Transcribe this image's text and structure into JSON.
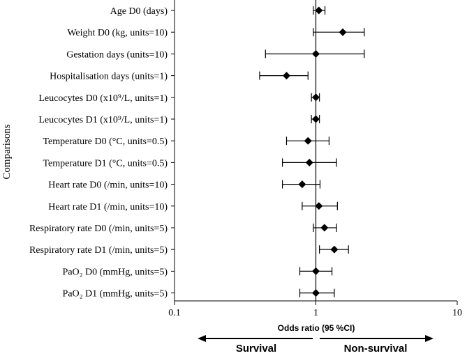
{
  "chart_data": {
    "type": "forest",
    "ylabel": "Comparisons",
    "xlabel": "Odds ratio (95 %CI)",
    "xscale": "log",
    "xlim": [
      0.1,
      10
    ],
    "xticks": [
      "0.1",
      "1",
      "10"
    ],
    "reference_line": 1,
    "rows": [
      {
        "label": "Age D0 (days)",
        "or": 1.05,
        "low": 0.96,
        "high": 1.16
      },
      {
        "label": "Weight D0 (kg, units=10)",
        "or": 1.55,
        "low": 0.96,
        "high": 2.2
      },
      {
        "label": "Gestation days (units=10)",
        "or": 1.0,
        "low": 0.44,
        "high": 2.2
      },
      {
        "label": "Hospitalisation days (units=1)",
        "or": 0.62,
        "low": 0.4,
        "high": 0.88
      },
      {
        "label": "Leucocytes D0 (x10⁹/L, units=1)",
        "or": 1.0,
        "low": 0.93,
        "high": 1.06
      },
      {
        "label": "Leucocytes D1 (x10⁹/L, units=1)",
        "or": 1.0,
        "low": 0.93,
        "high": 1.06
      },
      {
        "label": "Temperature D0 (°C, units=0.5)",
        "or": 0.88,
        "low": 0.62,
        "high": 1.24
      },
      {
        "label": "Temperature D1 (°C, units=0.5)",
        "or": 0.9,
        "low": 0.58,
        "high": 1.4
      },
      {
        "label": "Heart rate D0 (/min, units=10)",
        "or": 0.8,
        "low": 0.58,
        "high": 1.07
      },
      {
        "label": "Heart rate D1 (/min, units=10)",
        "or": 1.05,
        "low": 0.8,
        "high": 1.42
      },
      {
        "label": "Respiratory rate D0 (/min, units=5)",
        "or": 1.15,
        "low": 0.96,
        "high": 1.4
      },
      {
        "label": "Respiratory rate D1 (/min, units=5)",
        "or": 1.35,
        "low": 1.06,
        "high": 1.7
      },
      {
        "label": "PaO₂ D0 (mmHg, units=5)",
        "or": 1.0,
        "low": 0.77,
        "high": 1.3
      },
      {
        "label": "PaO₂ D1 (mmHg, units=5)",
        "or": 1.0,
        "low": 0.77,
        "high": 1.35
      }
    ],
    "direction_left": "Survival",
    "direction_right": "Non-survival"
  }
}
